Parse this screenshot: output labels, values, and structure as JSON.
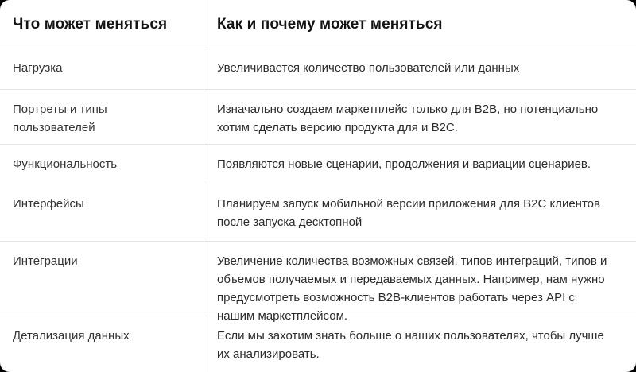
{
  "table": {
    "columns": [
      {
        "label": "Что может меняться"
      },
      {
        "label": "Как и почему может меняться"
      }
    ],
    "rows": [
      {
        "label": "Нагрузка",
        "description": "Увеличивается количество пользователей или данных"
      },
      {
        "label": "Портреты и типы пользователей",
        "description": "Изначально создаем маркетплейс только для B2B, но потенциально хотим сделать версию продукта для и B2C."
      },
      {
        "label": "Функциональность",
        "description": "Появляются новые сценарии, продолжения и вариации сценариев."
      },
      {
        "label": "Интерфейсы",
        "description": "Планируем запуск мобильной версии приложения для B2C клиентов после запуска десктопной"
      },
      {
        "label": "Интеграции",
        "description": "Увеличение количества возможных связей, типов интеграций, типов и объемов получаемых и передаваемых данных. Например, нам нужно предусмотреть возможность B2B-клиентов работать через API с нашим маркетплейсом."
      },
      {
        "label": "Детализация данных",
        "description": "Если мы захотим знать больше о наших пользователях, чтобы лучше их анализировать."
      }
    ]
  },
  "colors": {
    "card_background": "#ffffff",
    "page_background": "#000000",
    "divider": "#e3e3e3",
    "header_text": "#141414",
    "body_text": "#2b2b2b"
  }
}
